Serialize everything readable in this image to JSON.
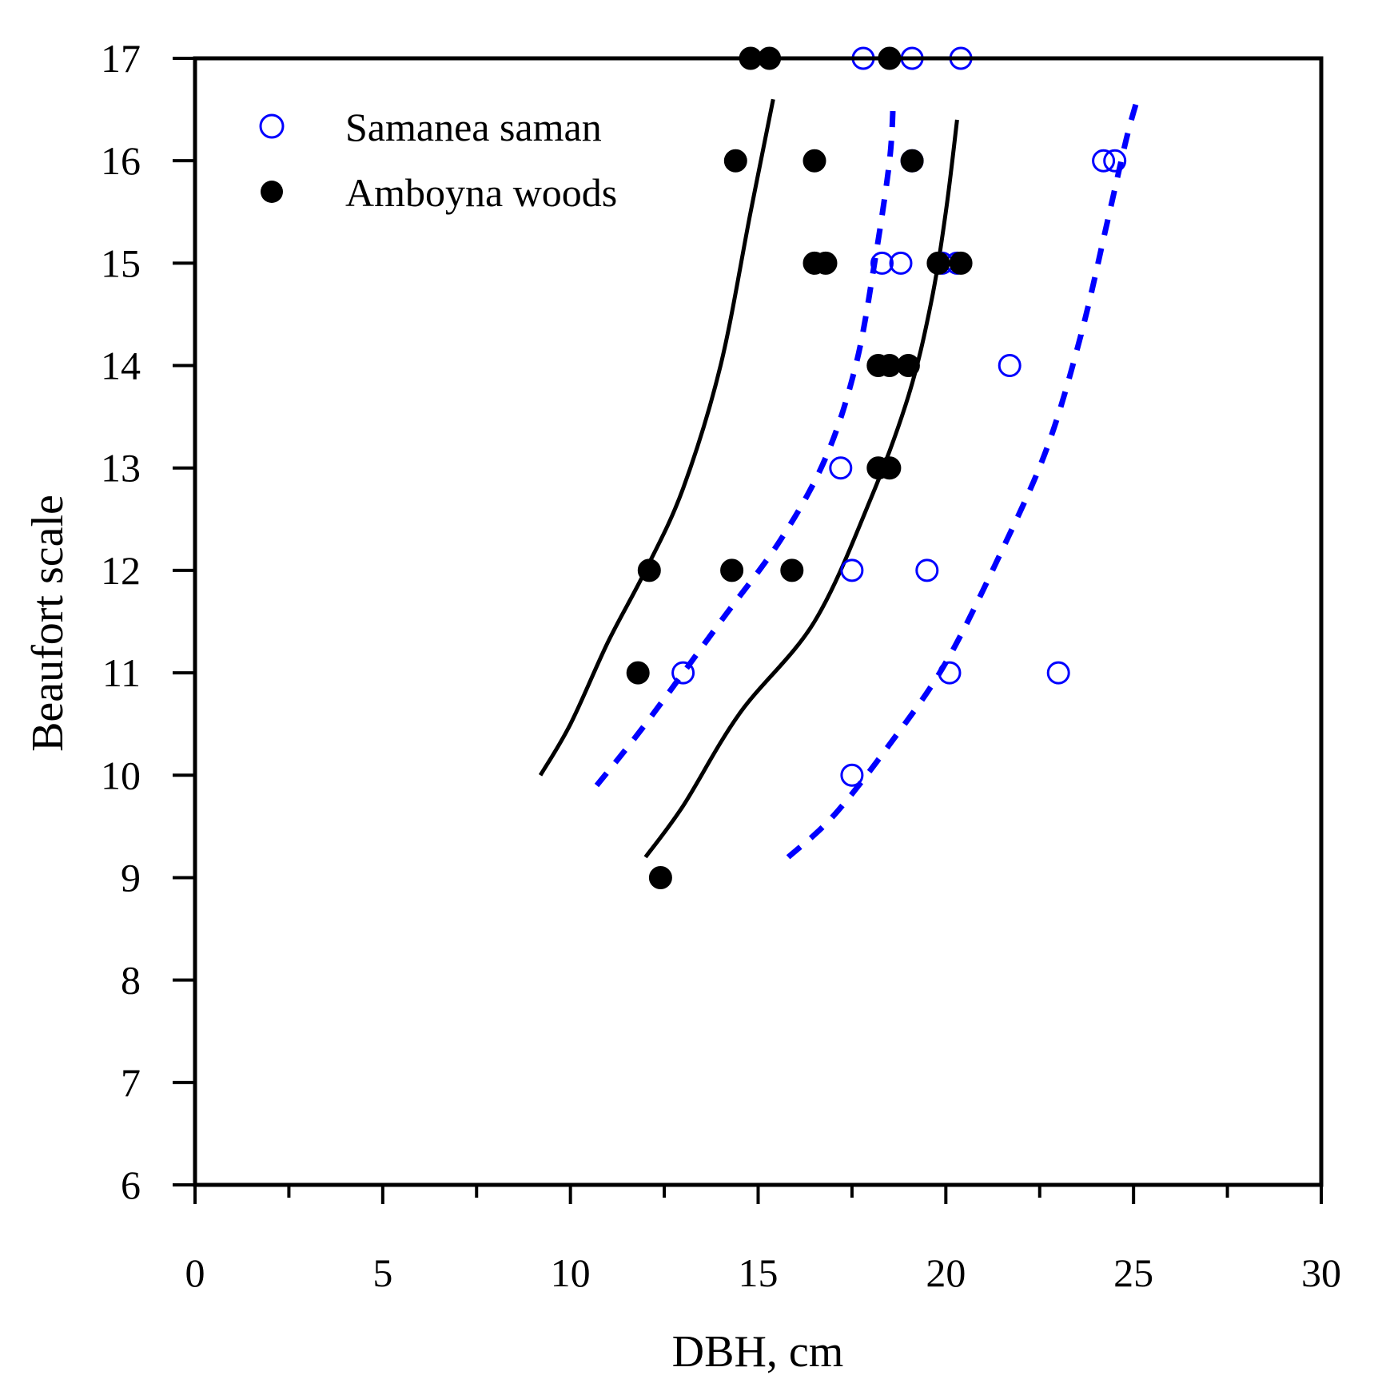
{
  "chart_data": {
    "type": "scatter",
    "xlabel": "DBH, cm",
    "ylabel": "Beaufort scale",
    "xlim": [
      0,
      30
    ],
    "ylim": [
      6,
      17
    ],
    "x_ticks": [
      0,
      5,
      10,
      15,
      20,
      25,
      30
    ],
    "y_ticks": [
      6,
      7,
      8,
      9,
      10,
      11,
      12,
      13,
      14,
      15,
      16,
      17
    ],
    "legend_position": "top-left",
    "series": [
      {
        "name": "Samanea saman",
        "marker": "open-circle",
        "color": "#0000ff",
        "points": [
          {
            "x": 17.8,
            "y": 17
          },
          {
            "x": 19.1,
            "y": 17
          },
          {
            "x": 20.4,
            "y": 17
          },
          {
            "x": 24.2,
            "y": 16
          },
          {
            "x": 24.5,
            "y": 16
          },
          {
            "x": 19.1,
            "y": 16
          },
          {
            "x": 18.3,
            "y": 15
          },
          {
            "x": 18.8,
            "y": 15
          },
          {
            "x": 19.9,
            "y": 15
          },
          {
            "x": 20.3,
            "y": 15
          },
          {
            "x": 21.7,
            "y": 14
          },
          {
            "x": 17.2,
            "y": 13
          },
          {
            "x": 17.5,
            "y": 12
          },
          {
            "x": 19.5,
            "y": 12
          },
          {
            "x": 13.0,
            "y": 11
          },
          {
            "x": 20.1,
            "y": 11
          },
          {
            "x": 23.0,
            "y": 11
          },
          {
            "x": 17.5,
            "y": 10
          }
        ]
      },
      {
        "name": "Amboyna woods",
        "marker": "filled-circle",
        "color": "#000000",
        "points": [
          {
            "x": 14.8,
            "y": 17
          },
          {
            "x": 15.3,
            "y": 17
          },
          {
            "x": 18.5,
            "y": 17
          },
          {
            "x": 14.4,
            "y": 16
          },
          {
            "x": 16.5,
            "y": 16
          },
          {
            "x": 19.1,
            "y": 16
          },
          {
            "x": 16.5,
            "y": 15
          },
          {
            "x": 16.8,
            "y": 15
          },
          {
            "x": 19.8,
            "y": 15
          },
          {
            "x": 20.4,
            "y": 15
          },
          {
            "x": 18.2,
            "y": 14
          },
          {
            "x": 18.5,
            "y": 14
          },
          {
            "x": 19.0,
            "y": 14
          },
          {
            "x": 18.2,
            "y": 13
          },
          {
            "x": 18.5,
            "y": 13
          },
          {
            "x": 12.1,
            "y": 12
          },
          {
            "x": 14.3,
            "y": 12
          },
          {
            "x": 15.9,
            "y": 12
          },
          {
            "x": 11.8,
            "y": 11
          },
          {
            "x": 12.4,
            "y": 9
          }
        ]
      }
    ],
    "curves": [
      {
        "name": "Amboyna woods curve 1",
        "style": "solid",
        "color": "#000000",
        "points": [
          [
            9.2,
            10.0
          ],
          [
            10.0,
            10.5
          ],
          [
            11.0,
            11.3
          ],
          [
            12.0,
            12.0
          ],
          [
            13.0,
            12.8
          ],
          [
            14.0,
            14.0
          ],
          [
            14.8,
            15.5
          ],
          [
            15.4,
            16.6
          ]
        ]
      },
      {
        "name": "Amboyna woods curve 2",
        "style": "solid",
        "color": "#000000",
        "points": [
          [
            12.0,
            9.2
          ],
          [
            13.0,
            9.7
          ],
          [
            14.5,
            10.6
          ],
          [
            16.5,
            11.5
          ],
          [
            18.0,
            12.7
          ],
          [
            19.0,
            13.7
          ],
          [
            19.6,
            14.6
          ],
          [
            20.0,
            15.5
          ],
          [
            20.3,
            16.4
          ]
        ]
      },
      {
        "name": "Samanea saman curve 1",
        "style": "dashed",
        "color": "#0000ff",
        "points": [
          [
            10.7,
            9.9
          ],
          [
            12.0,
            10.5
          ],
          [
            14.0,
            11.5
          ],
          [
            15.6,
            12.3
          ],
          [
            16.8,
            13.1
          ],
          [
            17.6,
            14.0
          ],
          [
            18.1,
            15.0
          ],
          [
            18.5,
            16.0
          ],
          [
            18.6,
            16.6
          ]
        ]
      },
      {
        "name": "Samanea saman curve 2",
        "style": "dashed",
        "color": "#0000ff",
        "points": [
          [
            15.8,
            9.2
          ],
          [
            17.0,
            9.6
          ],
          [
            18.5,
            10.3
          ],
          [
            20.0,
            11.1
          ],
          [
            21.5,
            12.2
          ],
          [
            22.7,
            13.2
          ],
          [
            23.6,
            14.3
          ],
          [
            24.3,
            15.4
          ],
          [
            24.8,
            16.2
          ],
          [
            25.1,
            16.6
          ]
        ]
      }
    ]
  }
}
